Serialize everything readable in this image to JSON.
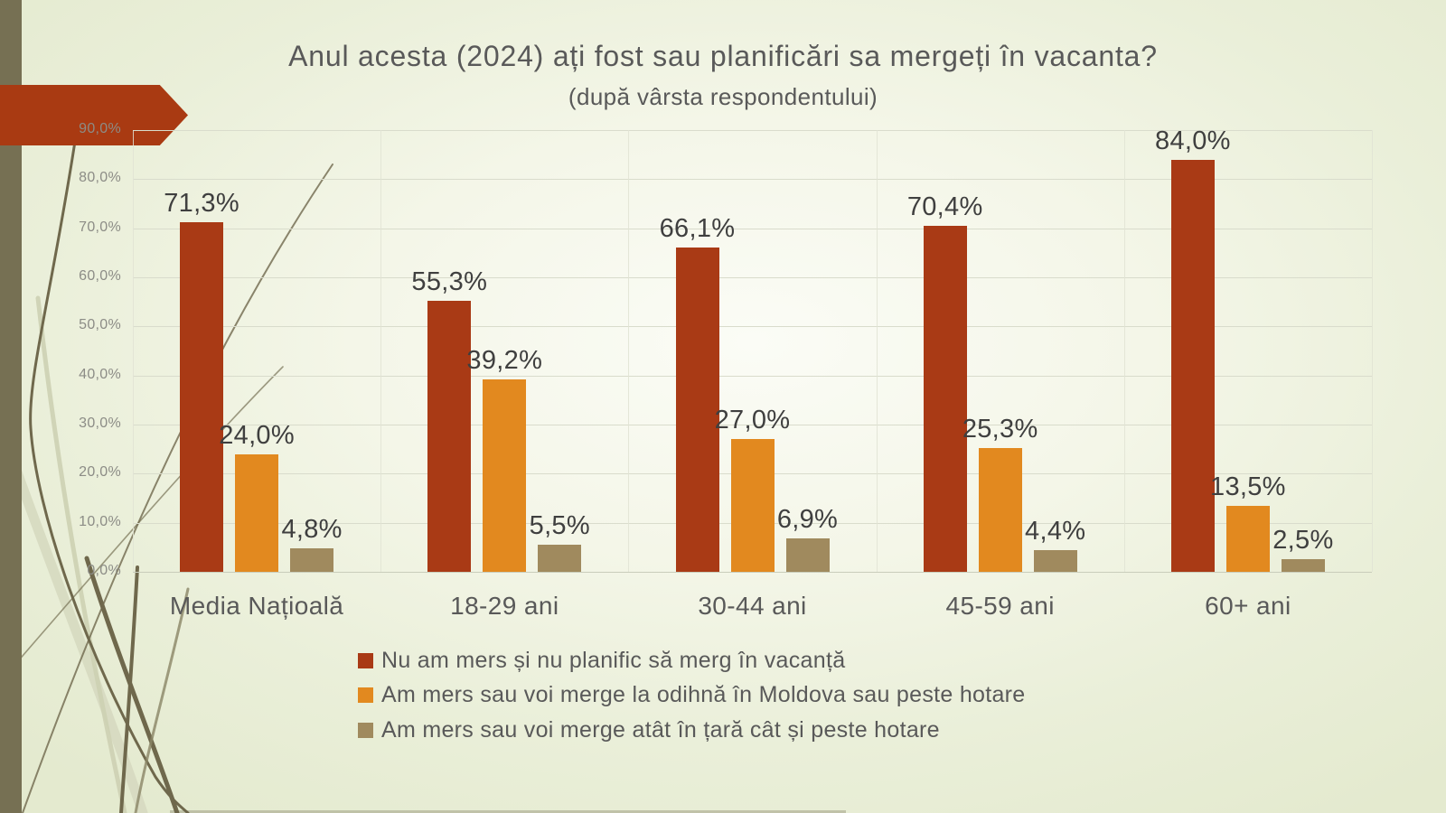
{
  "slide": {
    "title": "Anul acesta (2024) ați fost sau planificări sa mergeți în vacanta?",
    "subtitle": "(după vârsta respondentului)"
  },
  "chart_data": {
    "type": "bar",
    "title": "Anul acesta (2024) ați fost sau planificări sa mergeți în vacanta?",
    "subtitle": "(după vârsta respondentului)",
    "categories": [
      "Media Națioală",
      "18-29 ani",
      "30-44 ani",
      "45-59 ani",
      "60+ ani"
    ],
    "series": [
      {
        "name": "Nu am mers și nu planific să merg în vacanță",
        "color": "#a93a15",
        "values": [
          71.3,
          55.3,
          66.1,
          70.4,
          84.0
        ],
        "labels": [
          "71,3%",
          "55,3%",
          "66,1%",
          "70,4%",
          "84,0%"
        ]
      },
      {
        "name": "Am mers sau voi merge la odihnă în Moldova sau peste hotare",
        "color": "#e2891f",
        "values": [
          24.0,
          39.2,
          27.0,
          25.3,
          13.5
        ],
        "labels": [
          "24,0%",
          "39,2%",
          "27,0%",
          "25,3%",
          "13,5%"
        ]
      },
      {
        "name": "Am mers sau voi merge atât în țară cât și peste hotare",
        "color": "#a08a5e",
        "values": [
          4.8,
          5.5,
          6.9,
          4.4,
          2.5
        ],
        "labels": [
          "4,8%",
          "5,5%",
          "6,9%",
          "4,4%",
          "2,5%"
        ]
      }
    ],
    "y_axis": {
      "min": 0,
      "max": 90,
      "step": 10,
      "tick_labels": [
        "0,0%",
        "10,0%",
        "20,0%",
        "30,0%",
        "40,0%",
        "50,0%",
        "60,0%",
        "70,0%",
        "80,0%",
        "90,0%"
      ]
    },
    "grid": true,
    "legend_position": "bottom-left",
    "ylim": [
      0,
      90
    ]
  },
  "decor": {
    "left_bar_color": "#767053",
    "arrow_color": "#a93a12",
    "stem_dark": "#6f684c",
    "stem_mid": "#8a8465",
    "stem_light": "#d6d9c0",
    "stem_pale": "#cdd0b2"
  }
}
